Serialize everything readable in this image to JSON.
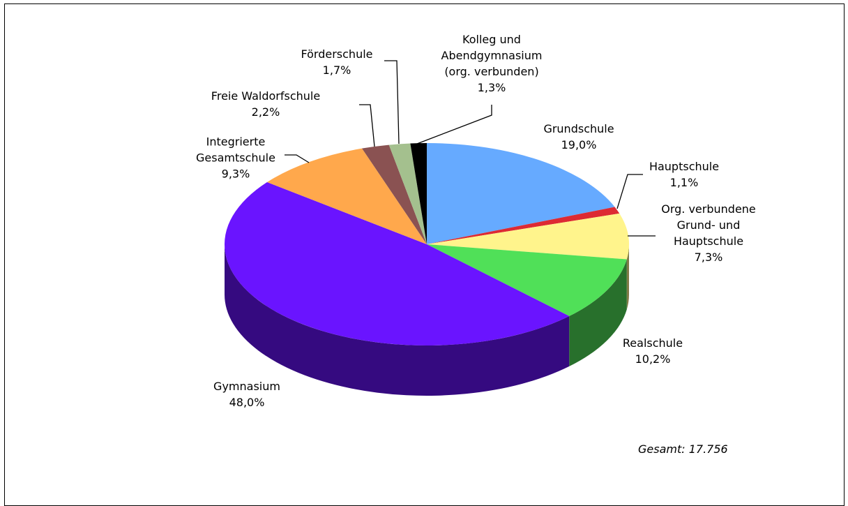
{
  "chart_data": {
    "type": "pie3d",
    "categories": [
      "Grundschule",
      "Hauptschule",
      "Org. verbundene\nGrund- und\nHauptschule",
      "Realschule",
      "Gymnasium",
      "Integrierte\nGesamtschule",
      "Freie Waldorfschule",
      "Förderschule",
      "Kolleg und\nAbendgymnasium\n(org. verbunden)"
    ],
    "values": [
      19.0,
      1.1,
      7.3,
      10.2,
      48.0,
      9.3,
      2.2,
      1.7,
      1.3
    ],
    "value_labels": [
      "19,0%",
      "1,1%",
      "7,3%",
      "10,2%",
      "48,0%",
      "9,3%",
      "2,2%",
      "1,7%",
      "1,3%"
    ],
    "colors": [
      "#66aaff",
      "#dd2a33",
      "#fff48c",
      "#50e058",
      "#6a14ff",
      "#ffa84c",
      "#8a5252",
      "#a4c08e",
      "#000000"
    ],
    "annotation": "Gesamt: 17.756"
  }
}
